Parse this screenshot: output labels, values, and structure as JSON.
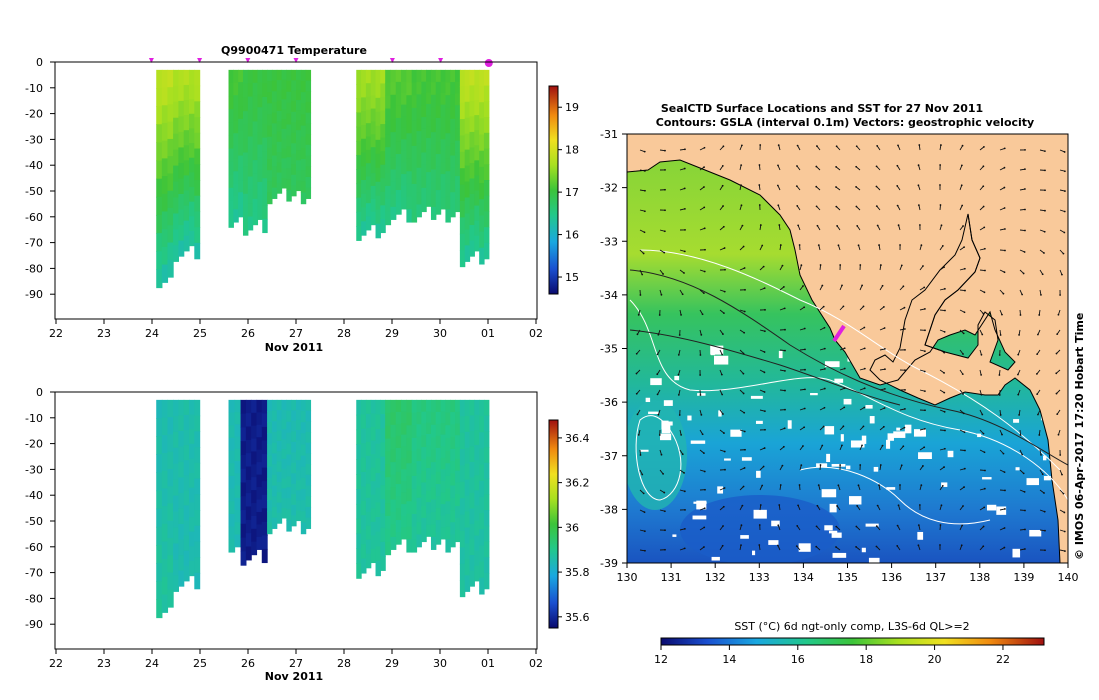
{
  "profiles_top": {
    "title": "Q9900471  Temperature",
    "xlabel": "Nov 2011",
    "x_ticks": [
      "22",
      "23",
      "24",
      "25",
      "26",
      "27",
      "28",
      "29",
      "30",
      "01",
      "02"
    ],
    "y_ticks": [
      "0",
      "-10",
      "-20",
      "-30",
      "-40",
      "-50",
      "-60",
      "-70",
      "-80",
      "-90"
    ],
    "colorbar_ticks": [
      "19",
      "18",
      "17",
      "16",
      "15"
    ]
  },
  "profiles_bottom": {
    "title": "",
    "xlabel": "Nov 2011",
    "x_ticks": [
      "22",
      "23",
      "24",
      "25",
      "26",
      "27",
      "28",
      "29",
      "30",
      "01",
      "02"
    ],
    "y_ticks": [
      "0",
      "-10",
      "-20",
      "-30",
      "-40",
      "-50",
      "-60",
      "-70",
      "-80",
      "-90"
    ],
    "colorbar_ticks": [
      "36.4",
      "36.2",
      "36",
      "35.8",
      "35.6"
    ]
  },
  "map": {
    "title_line1": "SealCTD Surface Locations and SST for 27 Nov 2011",
    "title_line2": "Contours: GSLA (interval 0.1m) Vectors: geostrophic velocity",
    "x_ticks": [
      "130",
      "131",
      "132",
      "133",
      "134",
      "135",
      "136",
      "137",
      "138",
      "139",
      "140"
    ],
    "y_ticks": [
      "-31",
      "-32",
      "-33",
      "-34",
      "-35",
      "-36",
      "-37",
      "-38",
      "-39"
    ],
    "sst_label": "SST (°C) 6d ngt-only comp, L3S-6d QL>=2",
    "sst_ticks": [
      "12",
      "14",
      "16",
      "18",
      "20",
      "22"
    ],
    "side_label": "© IMOS 06-Apr-2017 17:20 Hobart Time"
  },
  "colors": {
    "land": "#f9c99a",
    "ocean_warm": "#8fd42a",
    "ocean_mid": "#2ec36a",
    "ocean_cool": "#1a9fd8",
    "ocean_cold": "#1a5ec8",
    "track": "#e020e0"
  },
  "chart_data": [
    {
      "type": "heatmap",
      "title": "Q9900471  Temperature",
      "xlabel": "Nov 2011",
      "ylabel": "",
      "xlim": [
        22,
        32
      ],
      "ylim": [
        -98,
        0
      ],
      "colorbar": {
        "min": 14.6,
        "max": 19.5
      },
      "profiles": [
        {
          "x0": 24.1,
          "x1": 24.45,
          "bottom": -83,
          "surface": 17.8,
          "deep": 16.3
        },
        {
          "x0": 24.45,
          "x1": 25.0,
          "bottom": -73,
          "surface": 17.7,
          "deep": 16.3
        },
        {
          "x0": 25.6,
          "x1": 25.9,
          "bottom": -60,
          "surface": 17.1,
          "deep": 16.4
        },
        {
          "x0": 25.9,
          "x1": 26.4,
          "bottom": -63,
          "surface": 17.0,
          "deep": 16.5
        },
        {
          "x0": 26.4,
          "x1": 27.3,
          "bottom": -51,
          "surface": 17.0,
          "deep": 16.8
        },
        {
          "x0": 28.25,
          "x1": 28.85,
          "bottom": -65,
          "surface": 17.6,
          "deep": 16.4
        },
        {
          "x0": 28.85,
          "x1": 29.4,
          "bottom": -59,
          "surface": 17.2,
          "deep": 16.5
        },
        {
          "x0": 29.4,
          "x1": 30.4,
          "bottom": -58,
          "surface": 17.1,
          "deep": 16.6
        },
        {
          "x0": 30.4,
          "x1": 31.0,
          "bottom": -75,
          "surface": 17.8,
          "deep": 16.4
        }
      ],
      "markers_x": [
        24.0,
        25.0,
        26.0,
        27.0,
        29.0,
        30.0,
        31.0
      ]
    },
    {
      "type": "heatmap",
      "title": "",
      "xlabel": "Nov 2011",
      "ylabel": "",
      "xlim": [
        22,
        32
      ],
      "ylim": [
        -98,
        0
      ],
      "colorbar": {
        "min": 35.55,
        "max": 36.48
      },
      "profiles": [
        {
          "x0": 24.1,
          "x1": 24.45,
          "bottom": -83,
          "surface": 35.85,
          "deep": 35.88
        },
        {
          "x0": 24.45,
          "x1": 25.0,
          "bottom": -73,
          "surface": 35.86,
          "deep": 35.85
        },
        {
          "x0": 25.6,
          "x1": 25.85,
          "bottom": -58,
          "surface": 35.85,
          "deep": 35.85
        },
        {
          "x0": 25.85,
          "x1": 26.4,
          "bottom": -63,
          "surface": 35.58,
          "deep": 35.58
        },
        {
          "x0": 26.4,
          "x1": 27.3,
          "bottom": -51,
          "surface": 35.85,
          "deep": 35.86
        },
        {
          "x0": 28.25,
          "x1": 28.85,
          "bottom": -68,
          "surface": 35.88,
          "deep": 35.88
        },
        {
          "x0": 28.85,
          "x1": 29.4,
          "bottom": -59,
          "surface": 35.95,
          "deep": 35.9
        },
        {
          "x0": 29.4,
          "x1": 30.4,
          "bottom": -58,
          "surface": 35.92,
          "deep": 35.88
        },
        {
          "x0": 30.4,
          "x1": 31.0,
          "bottom": -75,
          "surface": 35.88,
          "deep": 35.87
        }
      ]
    },
    {
      "type": "heatmap",
      "title": "SealCTD Surface Locations and SST for 27 Nov 2011",
      "subtitle": "Contours: GSLA (interval 0.1m) Vectors: geostrophic velocity",
      "xlabel": "",
      "ylabel": "",
      "xlim": [
        130,
        140
      ],
      "ylim": [
        -39,
        -31
      ],
      "colorbar": {
        "label": "SST (°C) 6d ngt-only comp, L3S-6d QL>=2",
        "min": 12,
        "max": 23.2
      },
      "track": [
        [
          134.72,
          -34.93
        ],
        [
          134.88,
          -34.72
        ]
      ]
    }
  ]
}
